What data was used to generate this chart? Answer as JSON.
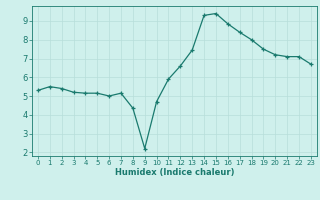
{
  "x": [
    0,
    1,
    2,
    3,
    4,
    5,
    6,
    7,
    8,
    9,
    10,
    11,
    12,
    13,
    14,
    15,
    16,
    17,
    18,
    19,
    20,
    21,
    22,
    23
  ],
  "y": [
    5.3,
    5.5,
    5.4,
    5.2,
    5.15,
    5.15,
    5.0,
    5.15,
    4.35,
    2.2,
    4.7,
    5.9,
    6.6,
    7.45,
    9.3,
    9.4,
    8.85,
    8.4,
    8.0,
    7.5,
    7.2,
    7.1,
    7.1,
    6.7
  ],
  "xlabel": "Humidex (Indice chaleur)",
  "line_color": "#1a7a6e",
  "bg_color": "#cff0ec",
  "grid_color": "#b8deda",
  "axis_color": "#1a7a6e",
  "tick_color": "#1a7a6e",
  "label_color": "#1a7a6e",
  "ylim": [
    1.8,
    9.8
  ],
  "xlim": [
    -0.5,
    23.5
  ],
  "yticks": [
    2,
    3,
    4,
    5,
    6,
    7,
    8,
    9
  ],
  "xticks": [
    0,
    1,
    2,
    3,
    4,
    5,
    6,
    7,
    8,
    9,
    10,
    11,
    12,
    13,
    14,
    15,
    16,
    17,
    18,
    19,
    20,
    21,
    22,
    23
  ]
}
